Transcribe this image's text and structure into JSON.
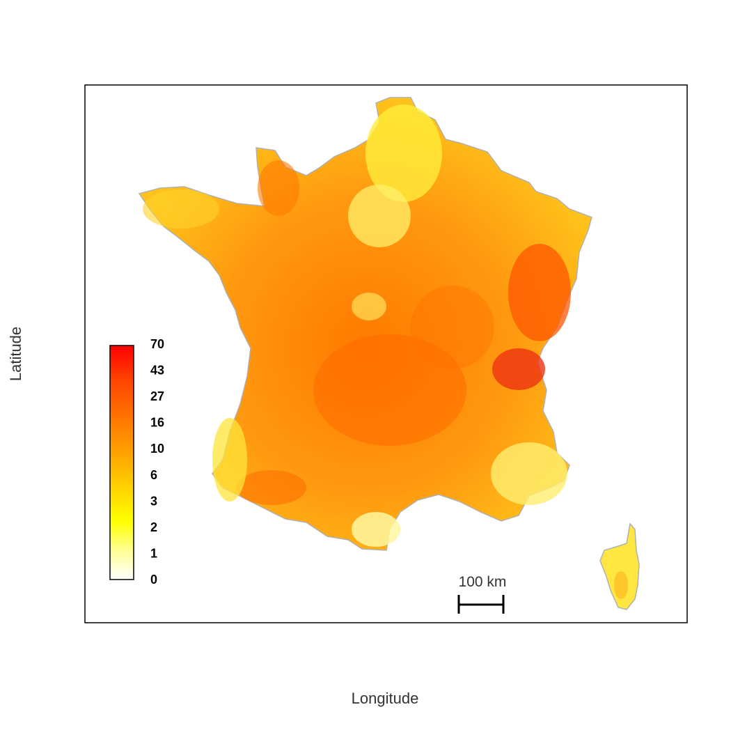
{
  "axes": {
    "xlabel": "Longitude",
    "ylabel": "Latitude"
  },
  "legend": {
    "ticks": [
      "70",
      "43",
      "27",
      "16",
      "10",
      "6",
      "3",
      "2",
      "1",
      "0"
    ],
    "colors": [
      "#ffffff",
      "#ffff66",
      "#ffff00",
      "#ffd000",
      "#ffa500",
      "#ff7a00",
      "#ff4a00",
      "#ff0000"
    ],
    "placement": "left"
  },
  "scale_bar": {
    "label": "100 km"
  },
  "map": {
    "region": "France",
    "colors": {
      "low": "#fff48a",
      "mid": "#ffa31a",
      "high": "#ff5a00",
      "very_high": "#f03a0a",
      "coast": "#b0b0b0"
    }
  }
}
